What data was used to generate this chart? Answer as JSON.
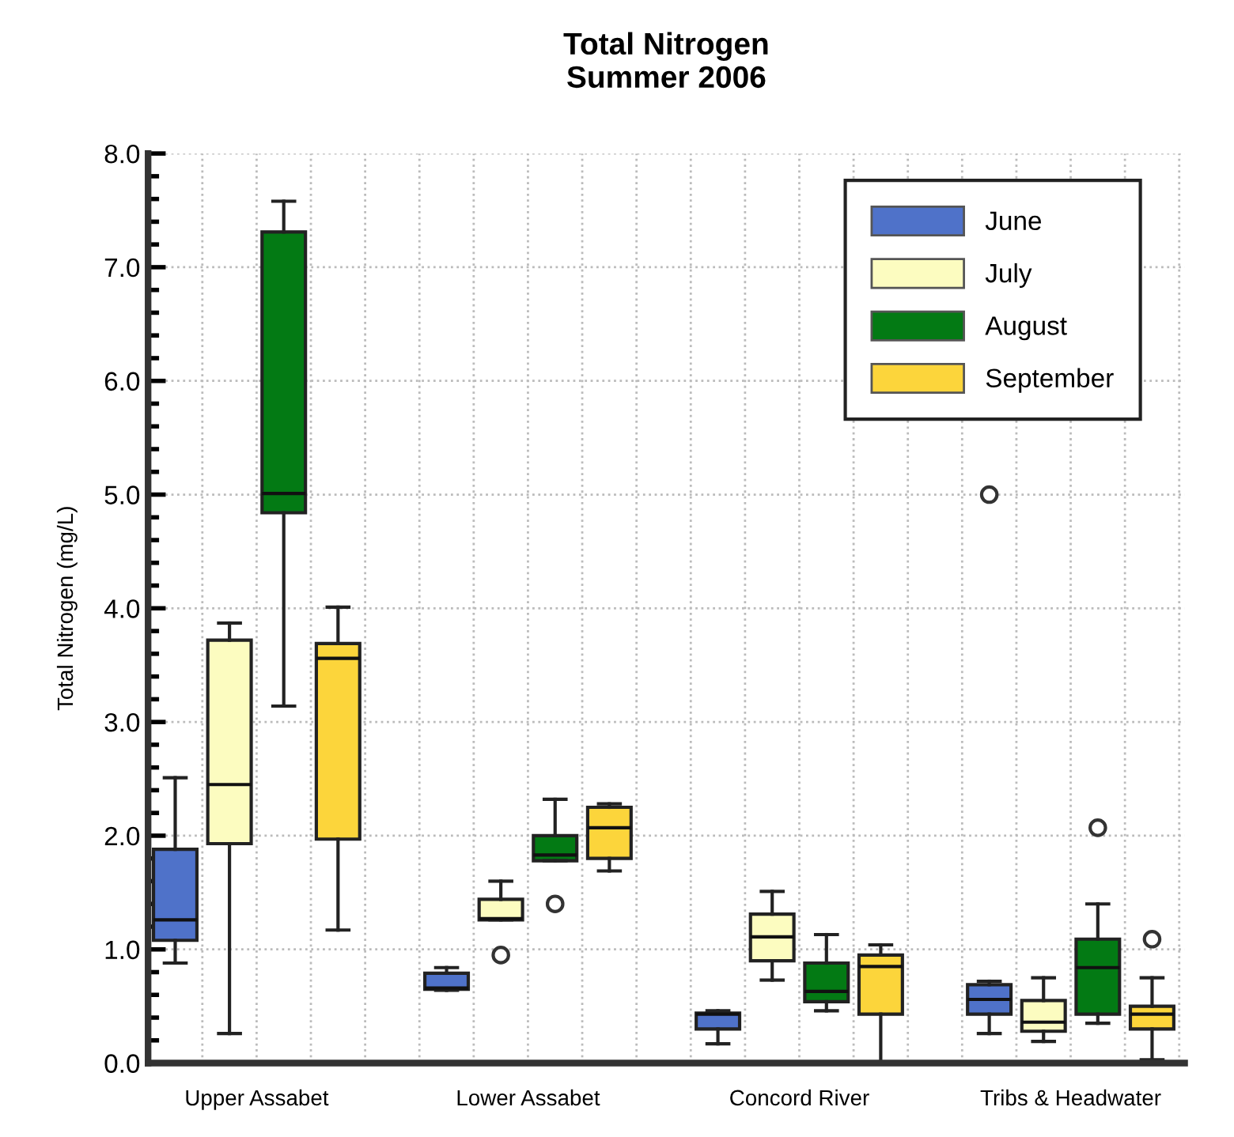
{
  "chart_data": {
    "type": "box",
    "title": "Total Nitrogen\nSummer 2006",
    "ylabel": "Total Nitrogen (mg/L)",
    "categories": [
      "Upper Assabet",
      "Lower Assabet",
      "Concord River",
      "Tribs & Headwater"
    ],
    "ylim": [
      0,
      8
    ],
    "yticks": [
      {
        "value": 0,
        "label": "0.0"
      },
      {
        "value": 1,
        "label": "1.0"
      },
      {
        "value": 2,
        "label": "2.0"
      },
      {
        "value": 3,
        "label": "3.0"
      },
      {
        "value": 4,
        "label": "4.0"
      },
      {
        "value": 5,
        "label": "5.0"
      },
      {
        "value": 6,
        "label": "6.0"
      },
      {
        "value": 7,
        "label": "7.0"
      },
      {
        "value": 8,
        "label": "8.0"
      }
    ],
    "grid": true,
    "legend": "top right",
    "series": [
      {
        "name": "June",
        "color": "#4f72c9",
        "boxes": [
          {
            "low": 0.88,
            "q1": 1.08,
            "median": 1.26,
            "q3": 1.88,
            "high": 2.51
          },
          {
            "low": 0.64,
            "q1": 0.65,
            "median": 0.66,
            "q3": 0.79,
            "high": 0.84
          },
          {
            "low": 0.17,
            "q1": 0.3,
            "median": 0.43,
            "q3": 0.44,
            "high": 0.46
          },
          {
            "low": 0.26,
            "q1": 0.43,
            "median": 0.56,
            "q3": 0.69,
            "high": 0.72,
            "outliers": [
              5.0
            ]
          }
        ]
      },
      {
        "name": "July",
        "color": "#fcfcc0",
        "boxes": [
          {
            "low": 0.26,
            "q1": 1.93,
            "median": 2.45,
            "q3": 3.72,
            "high": 3.87
          },
          {
            "low": 1.26,
            "q1": 1.26,
            "median": 1.27,
            "q3": 1.44,
            "high": 1.6,
            "outliers": [
              0.95
            ]
          },
          {
            "low": 0.73,
            "q1": 0.9,
            "median": 1.11,
            "q3": 1.31,
            "high": 1.51
          },
          {
            "low": 0.19,
            "q1": 0.28,
            "median": 0.36,
            "q3": 0.55,
            "high": 0.75
          }
        ]
      },
      {
        "name": "August",
        "color": "#037a14",
        "boxes": [
          {
            "low": 3.14,
            "q1": 4.84,
            "median": 5.01,
            "q3": 7.31,
            "high": 7.58
          },
          {
            "low": 1.78,
            "q1": 1.78,
            "median": 1.83,
            "q3": 2.0,
            "high": 2.32,
            "outliers": [
              1.4
            ]
          },
          {
            "low": 0.46,
            "q1": 0.54,
            "median": 0.63,
            "q3": 0.88,
            "high": 1.13
          },
          {
            "low": 0.35,
            "q1": 0.43,
            "median": 0.84,
            "q3": 1.09,
            "high": 1.4,
            "outliers": [
              2.07
            ]
          }
        ]
      },
      {
        "name": "September",
        "color": "#fcd53b",
        "boxes": [
          {
            "low": 1.17,
            "q1": 1.97,
            "median": 3.56,
            "q3": 3.69,
            "high": 4.01
          },
          {
            "low": 1.69,
            "q1": 1.8,
            "median": 2.07,
            "q3": 2.25,
            "high": 2.28
          },
          {
            "low": 0.0,
            "q1": 0.43,
            "median": 0.85,
            "q3": 0.95,
            "high": 1.04
          },
          {
            "low": 0.03,
            "q1": 0.3,
            "median": 0.43,
            "q3": 0.5,
            "high": 0.75,
            "outliers": [
              1.09
            ]
          }
        ]
      }
    ]
  }
}
